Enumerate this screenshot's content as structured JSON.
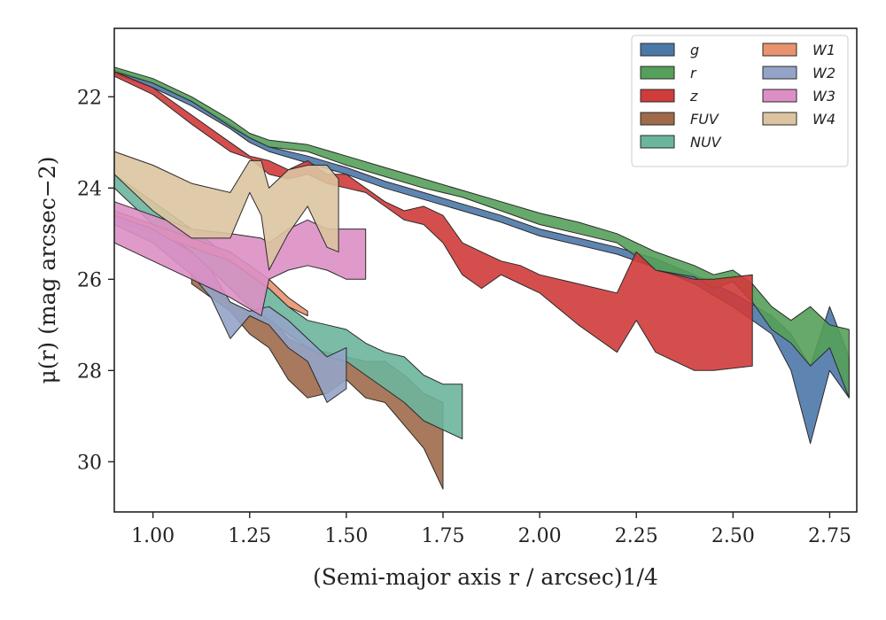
{
  "chart_data": {
    "type": "area",
    "xlabel": "(Semi-major axis r / arcsec)1/4",
    "ylabel": "μ(r) (mag arcsec−2)",
    "xlim": [
      0.9,
      2.82
    ],
    "ylim": [
      31.1,
      20.5
    ],
    "y_inverted": true,
    "xticks": [
      "1.00",
      "1.25",
      "1.50",
      "1.75",
      "2.00",
      "2.25",
      "2.50",
      "2.75"
    ],
    "yticks": [
      "22",
      "24",
      "26",
      "28",
      "30"
    ],
    "legend_position": "top-right",
    "legend_columns": 2,
    "series": [
      {
        "name": "g",
        "color": "#4c78a8",
        "x": [
          0.9,
          1.0,
          1.1,
          1.2,
          1.25,
          1.3,
          1.4,
          1.5,
          1.6,
          1.7,
          1.8,
          1.9,
          2.0,
          2.1,
          2.2,
          2.3,
          2.4,
          2.5,
          2.6,
          2.65,
          2.7,
          2.75,
          2.8
        ],
        "lower": [
          21.4,
          21.7,
          22.1,
          22.6,
          22.9,
          23.1,
          23.3,
          23.55,
          23.85,
          24.1,
          24.35,
          24.6,
          24.9,
          25.1,
          25.3,
          25.55,
          25.9,
          26.3,
          26.8,
          27.2,
          27.9,
          26.6,
          27.7
        ],
        "upper": [
          21.5,
          21.8,
          22.2,
          22.7,
          23.0,
          23.2,
          23.45,
          23.7,
          24.0,
          24.25,
          24.5,
          24.75,
          25.05,
          25.25,
          25.45,
          25.75,
          26.1,
          26.6,
          27.2,
          28.0,
          29.6,
          28.0,
          28.6
        ]
      },
      {
        "name": "r",
        "color": "#55a05a",
        "x": [
          0.9,
          1.0,
          1.1,
          1.2,
          1.25,
          1.3,
          1.4,
          1.5,
          1.6,
          1.7,
          1.8,
          1.9,
          2.0,
          2.1,
          2.2,
          2.3,
          2.4,
          2.45,
          2.5,
          2.55,
          2.6,
          2.65,
          2.7,
          2.75,
          2.8
        ],
        "lower": [
          21.35,
          21.6,
          22.0,
          22.5,
          22.8,
          22.95,
          23.05,
          23.3,
          23.55,
          23.8,
          24.05,
          24.3,
          24.55,
          24.75,
          25.0,
          25.4,
          25.7,
          25.9,
          25.8,
          26.1,
          26.6,
          26.9,
          26.6,
          27.0,
          27.1
        ],
        "upper": [
          21.45,
          21.7,
          22.1,
          22.65,
          22.9,
          23.1,
          23.2,
          23.5,
          23.75,
          24.0,
          24.2,
          24.5,
          24.8,
          25.0,
          25.2,
          25.8,
          25.95,
          26.2,
          26.05,
          26.5,
          27.1,
          27.4,
          27.9,
          27.5,
          28.6
        ]
      },
      {
        "name": "z",
        "color": "#d03b3b",
        "x": [
          0.9,
          1.0,
          1.1,
          1.2,
          1.25,
          1.3,
          1.35,
          1.4,
          1.45,
          1.5,
          1.55,
          1.6,
          1.65,
          1.7,
          1.75,
          1.8,
          1.85,
          1.9,
          1.95,
          2.0,
          2.1,
          2.2,
          2.25,
          2.3,
          2.4,
          2.45,
          2.55
        ],
        "lower": [
          21.45,
          21.8,
          22.4,
          23.0,
          23.3,
          23.4,
          23.6,
          23.4,
          23.7,
          23.7,
          24.0,
          24.3,
          24.5,
          24.4,
          24.6,
          25.2,
          25.4,
          25.6,
          25.7,
          25.9,
          26.1,
          26.3,
          25.4,
          25.8,
          26.0,
          26.0,
          25.9
        ],
        "upper": [
          21.55,
          21.95,
          22.6,
          23.2,
          23.35,
          23.7,
          23.8,
          23.7,
          23.9,
          24.0,
          24.1,
          24.4,
          24.7,
          24.8,
          25.2,
          25.9,
          26.2,
          25.9,
          26.1,
          26.3,
          27.0,
          27.6,
          26.9,
          27.6,
          28.0,
          28.0,
          27.9
        ]
      },
      {
        "name": "FUV",
        "color": "#9e6a4a",
        "x": [
          1.1,
          1.2,
          1.25,
          1.3,
          1.35,
          1.4,
          1.45,
          1.5,
          1.55,
          1.6,
          1.65,
          1.7,
          1.75
        ],
        "lower": [
          25.8,
          26.5,
          26.7,
          26.8,
          27.3,
          27.5,
          27.6,
          27.7,
          27.8,
          27.8,
          28.1,
          28.5,
          28.7
        ],
        "upper": [
          26.1,
          26.7,
          27.2,
          27.5,
          28.2,
          28.6,
          28.5,
          28.2,
          28.6,
          28.7,
          29.2,
          29.7,
          30.6
        ]
      },
      {
        "name": "NUV",
        "color": "#6bb59c",
        "x": [
          0.9,
          0.95,
          1.0,
          1.05,
          1.1,
          1.15,
          1.2,
          1.25,
          1.3,
          1.35,
          1.4,
          1.45,
          1.5,
          1.55,
          1.6,
          1.65,
          1.7,
          1.75,
          1.8
        ],
        "lower": [
          23.7,
          24.0,
          24.3,
          24.6,
          24.9,
          25.2,
          25.6,
          25.9,
          26.2,
          26.6,
          26.9,
          27.0,
          27.1,
          27.4,
          27.6,
          27.7,
          28.1,
          28.3,
          28.3
        ],
        "upper": [
          24.0,
          24.4,
          24.8,
          25.1,
          25.4,
          25.8,
          26.2,
          26.6,
          26.9,
          27.2,
          27.5,
          27.7,
          27.8,
          28.1,
          28.4,
          28.7,
          29.1,
          29.3,
          29.5
        ]
      },
      {
        "name": "W1",
        "color": "#e8936e",
        "x": [
          0.9,
          1.0,
          1.1,
          1.2,
          1.25,
          1.3,
          1.35,
          1.4
        ],
        "lower": [
          24.5,
          24.8,
          25.1,
          25.4,
          25.7,
          26.0,
          26.4,
          26.7
        ],
        "upper": [
          24.7,
          25.0,
          25.3,
          25.6,
          25.9,
          26.2,
          26.6,
          26.8
        ]
      },
      {
        "name": "W2",
        "color": "#94a4c8",
        "x": [
          0.9,
          1.0,
          1.1,
          1.15,
          1.2,
          1.25,
          1.3,
          1.35,
          1.4,
          1.45,
          1.5
        ],
        "lower": [
          24.6,
          24.9,
          25.4,
          25.8,
          26.5,
          26.7,
          26.6,
          26.9,
          27.3,
          27.7,
          27.5
        ],
        "upper": [
          24.8,
          25.2,
          25.9,
          26.4,
          27.3,
          26.8,
          27.0,
          27.5,
          27.8,
          28.7,
          28.4
        ]
      },
      {
        "name": "W3",
        "color": "#dc8fc4",
        "x": [
          0.9,
          1.0,
          1.1,
          1.2,
          1.28,
          1.3,
          1.35,
          1.4,
          1.45,
          1.5,
          1.55
        ],
        "lower": [
          24.3,
          24.6,
          24.9,
          25.0,
          25.1,
          25.2,
          24.9,
          24.7,
          24.9,
          24.9,
          24.9
        ],
        "upper": [
          25.2,
          25.6,
          26.0,
          26.4,
          26.8,
          26.0,
          25.8,
          25.7,
          25.8,
          26.0,
          26.0
        ]
      },
      {
        "name": "W4",
        "color": "#dcc4a0",
        "x": [
          0.9,
          1.0,
          1.1,
          1.2,
          1.25,
          1.28,
          1.3,
          1.35,
          1.4,
          1.45,
          1.48
        ],
        "lower": [
          23.2,
          23.5,
          23.9,
          24.1,
          23.4,
          23.4,
          24.0,
          23.6,
          23.5,
          23.5,
          23.8
        ],
        "upper": [
          23.7,
          24.5,
          25.1,
          25.1,
          24.1,
          24.6,
          25.8,
          25.0,
          24.4,
          25.3,
          25.4
        ]
      }
    ]
  }
}
